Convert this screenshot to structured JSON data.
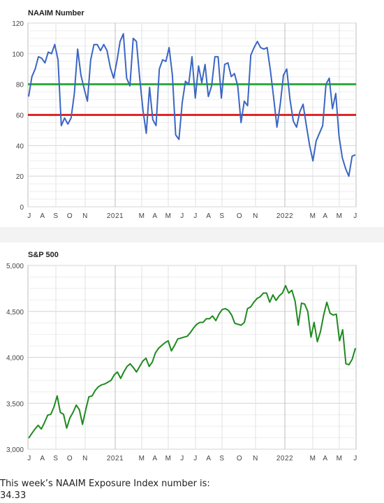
{
  "footer": {
    "line1": "This week’s NAAIM Exposure Index number is:",
    "value": "34.33"
  },
  "chart_data": [
    {
      "type": "line",
      "title": "NAAIM Number",
      "xlabel": "",
      "ylabel": "",
      "ylim": [
        0,
        120
      ],
      "yticks": [
        0,
        20,
        40,
        60,
        80,
        100,
        120
      ],
      "x_tick_labels": [
        "J",
        "A",
        "S",
        "O",
        "N",
        "2021",
        "M",
        "A",
        "M",
        "J",
        "J",
        "A",
        "S",
        "O",
        "N",
        "2022",
        "M",
        "A",
        "M",
        "J"
      ],
      "grid": true,
      "line_color": "#3a66c4",
      "reference_lines": [
        {
          "value": 80,
          "color": "#2eaa3a"
        },
        {
          "value": 60,
          "color": "#e02525"
        }
      ],
      "series": [
        {
          "values": [
            72,
            85,
            90,
            98,
            97,
            94,
            101,
            100,
            106,
            96,
            53,
            58,
            54,
            58,
            74,
            103,
            86,
            77,
            69,
            96,
            106,
            106,
            102,
            106,
            102,
            91,
            84,
            95,
            108,
            113,
            84,
            79,
            110,
            108,
            84,
            63,
            48,
            78,
            57,
            53,
            90,
            96,
            95,
            104,
            86,
            47,
            44,
            68,
            82,
            80,
            98,
            71,
            92,
            81,
            93,
            72,
            79,
            98,
            98,
            71,
            93,
            94,
            85,
            87,
            79,
            55,
            69,
            66,
            99,
            104,
            108,
            104,
            103,
            104,
            89,
            71,
            52,
            67,
            86,
            90,
            70,
            56,
            52,
            62,
            67,
            53,
            40,
            30,
            43,
            48,
            53,
            80,
            84,
            64,
            74,
            46,
            32,
            25,
            20,
            33,
            34
          ]
        }
      ]
    },
    {
      "type": "line",
      "title": "S&P 500",
      "xlabel": "",
      "ylabel": "",
      "ylim": [
        3000,
        5000
      ],
      "yticks": [
        "3,000",
        "3,500",
        "4,000",
        "4,500",
        "5,000"
      ],
      "x_tick_labels": [
        "J",
        "A",
        "S",
        "O",
        "N",
        "2021",
        "M",
        "A",
        "M",
        "J",
        "J",
        "A",
        "S",
        "O",
        "N",
        "2022",
        "M",
        "A",
        "M",
        "J"
      ],
      "grid": true,
      "line_color": "#1f8a1f",
      "series": [
        {
          "values": [
            3120,
            3170,
            3220,
            3260,
            3220,
            3290,
            3370,
            3380,
            3460,
            3580,
            3400,
            3380,
            3230,
            3340,
            3400,
            3480,
            3430,
            3270,
            3430,
            3570,
            3580,
            3640,
            3680,
            3700,
            3710,
            3730,
            3750,
            3810,
            3840,
            3770,
            3840,
            3900,
            3930,
            3890,
            3840,
            3900,
            3960,
            3990,
            3900,
            3950,
            4050,
            4100,
            4130,
            4160,
            4180,
            4070,
            4130,
            4200,
            4210,
            4220,
            4230,
            4270,
            4320,
            4360,
            4380,
            4380,
            4420,
            4420,
            4450,
            4400,
            4470,
            4520,
            4530,
            4510,
            4460,
            4370,
            4360,
            4350,
            4380,
            4530,
            4550,
            4600,
            4640,
            4660,
            4700,
            4700,
            4600,
            4680,
            4620,
            4670,
            4700,
            4780,
            4700,
            4730,
            4610,
            4350,
            4590,
            4580,
            4500,
            4220,
            4380,
            4170,
            4280,
            4460,
            4600,
            4480,
            4460,
            4470,
            4180,
            4300,
            3930,
            3920,
            3980,
            4100
          ]
        }
      ]
    }
  ]
}
